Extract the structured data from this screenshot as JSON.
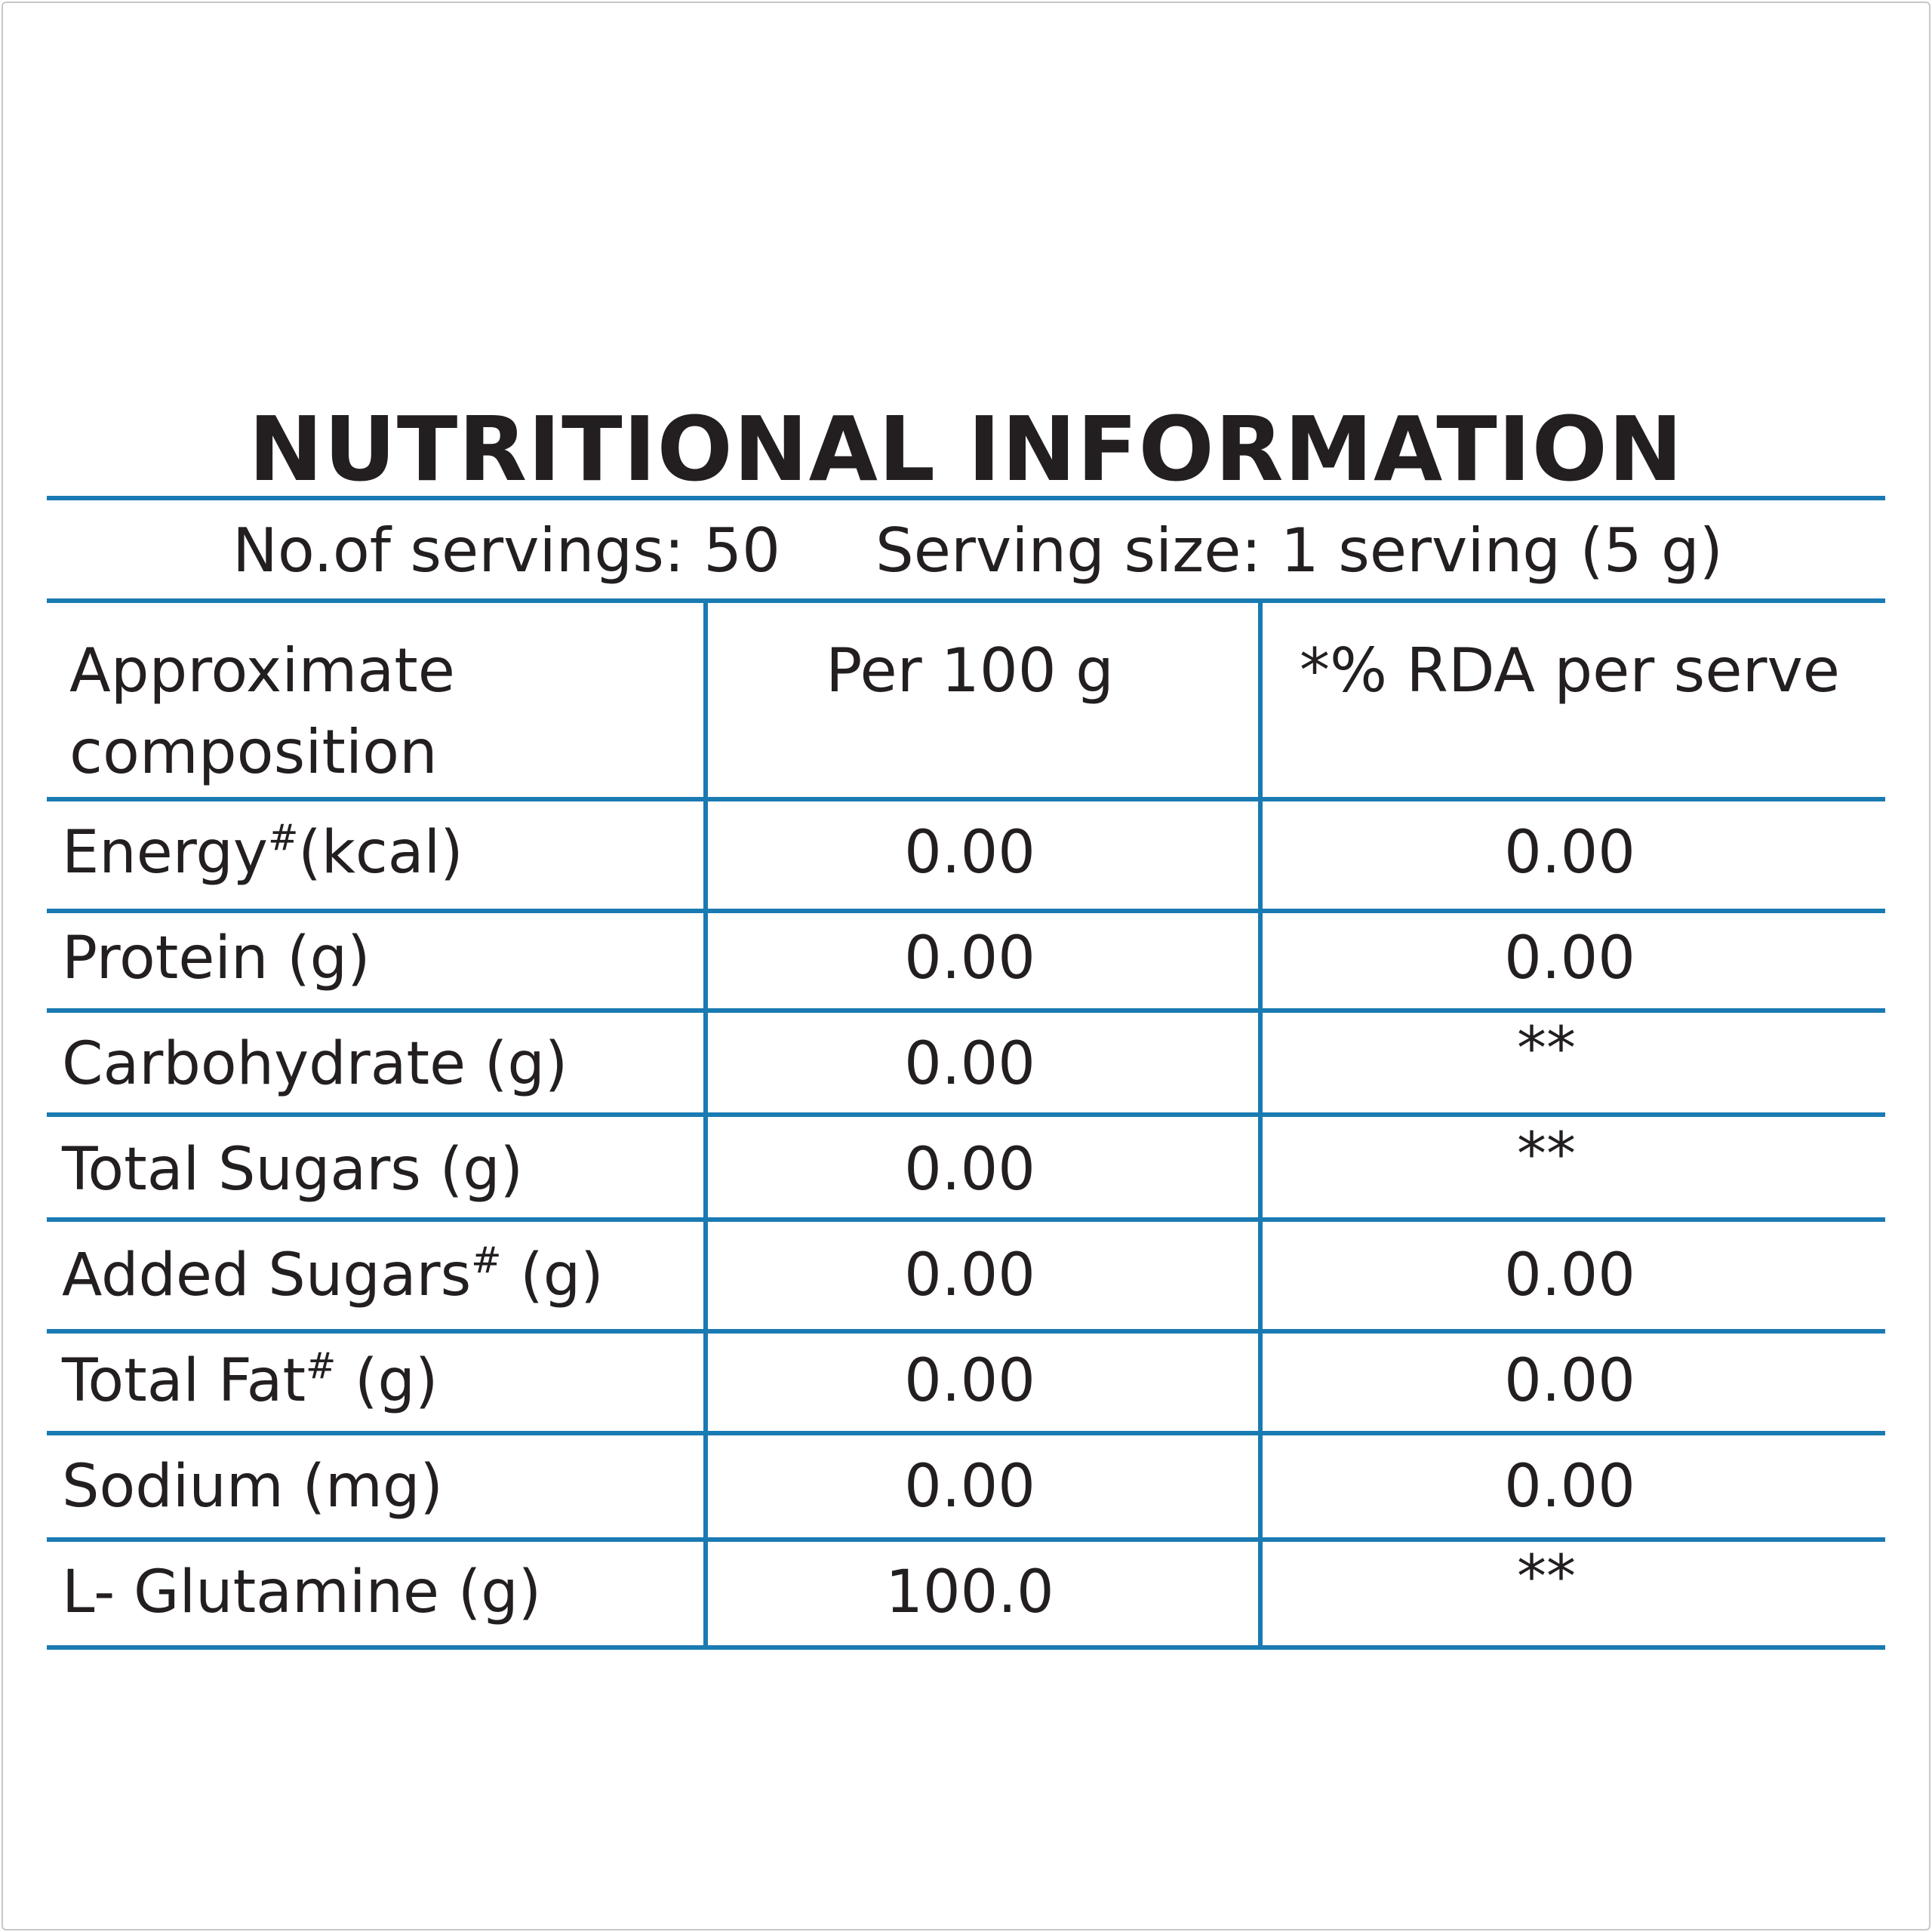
{
  "title": "NUTRITIONAL INFORMATION",
  "servings": {
    "count_text": "No.of servings: 50",
    "size_text": "Serving size: 1 serving (5 g)"
  },
  "table": {
    "headers": {
      "col1_line1": "Approximate",
      "col1_line2": "composition",
      "col2": "Per 100 g",
      "col3": "*% RDA per serve"
    },
    "rows": [
      {
        "name": "Energy",
        "sup": "#",
        "unit": "(kcal)",
        "per100": "0.00",
        "rda": "0.00"
      },
      {
        "name": "Protein (g)",
        "sup": "",
        "unit": "",
        "per100": "0.00",
        "rda": "0.00"
      },
      {
        "name": "Carbohydrate (g)",
        "sup": "",
        "unit": "",
        "per100": "0.00",
        "rda": "**"
      },
      {
        "name": "Total Sugars (g)",
        "sup": "",
        "unit": "",
        "per100": "0.00",
        "rda": "**"
      },
      {
        "name": "Added Sugars",
        "sup": "#",
        "unit": " (g)",
        "per100": "0.00",
        "rda": "0.00"
      },
      {
        "name": "Total Fat",
        "sup": "#",
        "unit": " (g)",
        "per100": "0.00",
        "rda": "0.00"
      },
      {
        "name": "Sodium (mg)",
        "sup": "",
        "unit": "",
        "per100": "0.00",
        "rda": "0.00"
      },
      {
        "name": "L- Glutamine (g)",
        "sup": "",
        "unit": "",
        "per100": "100.0",
        "rda": "**"
      }
    ]
  },
  "colors": {
    "rule": "#1a7ab2",
    "text": "#231f20"
  }
}
